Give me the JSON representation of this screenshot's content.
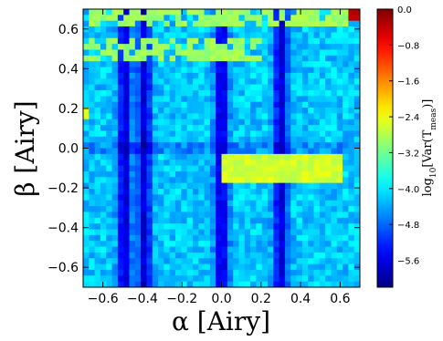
{
  "chart_data": {
    "type": "heatmap",
    "title": "",
    "xlabel": "α [Airy]",
    "ylabel": "β [Airy]",
    "xlim": [
      -0.7,
      0.7
    ],
    "ylim": [
      -0.7,
      0.7
    ],
    "x_ticks": [
      -0.6,
      -0.4,
      -0.2,
      0.0,
      0.2,
      0.4,
      0.6
    ],
    "x_tick_labels": [
      "−0.6",
      "−0.4",
      "−0.2",
      "0.0",
      "0.2",
      "0.4",
      "0.6"
    ],
    "y_ticks": [
      -0.6,
      -0.4,
      -0.2,
      0.0,
      0.2,
      0.4,
      0.6
    ],
    "y_tick_labels": [
      "−0.6",
      "−0.4",
      "−0.2",
      "0.0",
      "0.2",
      "0.4",
      "0.6"
    ],
    "colorbar": {
      "label": "log10[Var(T_meas)]",
      "label_parts": {
        "func": "log",
        "sub": "10",
        "pre": "[Var(T",
        "meas": "meas",
        "post": ")]"
      },
      "range": [
        -6.2,
        0.0
      ],
      "ticks": [
        0.0,
        -0.8,
        -1.6,
        -2.4,
        -3.2,
        -4.0,
        -4.8,
        -5.6
      ],
      "tick_labels": [
        "0.0",
        "−0.8",
        "−1.6",
        "−2.4",
        "−3.2",
        "−4.0",
        "−4.8",
        "−5.6"
      ],
      "colormap": "jet"
    },
    "grid": {
      "nx": 48,
      "ny": 48,
      "background_level": -4.2,
      "dark_columns_x": [
        -0.49,
        -0.39,
        0.0,
        0.3
      ],
      "dark_column_level": -5.7,
      "features": [
        {
          "name": "top rows",
          "x_range": [
            -0.7,
            0.7
          ],
          "y_range": [
            0.6,
            0.7
          ],
          "level": -3.0
        },
        {
          "name": "upper band",
          "x_range": [
            -0.7,
            0.2
          ],
          "y_range": [
            0.45,
            0.54
          ],
          "level": -3.0
        },
        {
          "name": "corner",
          "x_range": [
            0.64,
            0.7
          ],
          "y_range": [
            0.64,
            0.7
          ],
          "level": -0.3
        },
        {
          "name": "band below zero",
          "x_range": [
            0.0,
            0.6
          ],
          "y_range": [
            -0.17,
            -0.03
          ],
          "level": -2.6
        },
        {
          "name": "left edge spot",
          "x_range": [
            -0.7,
            -0.67
          ],
          "y_range": [
            0.15,
            0.2
          ],
          "level": -2.5
        }
      ]
    }
  }
}
